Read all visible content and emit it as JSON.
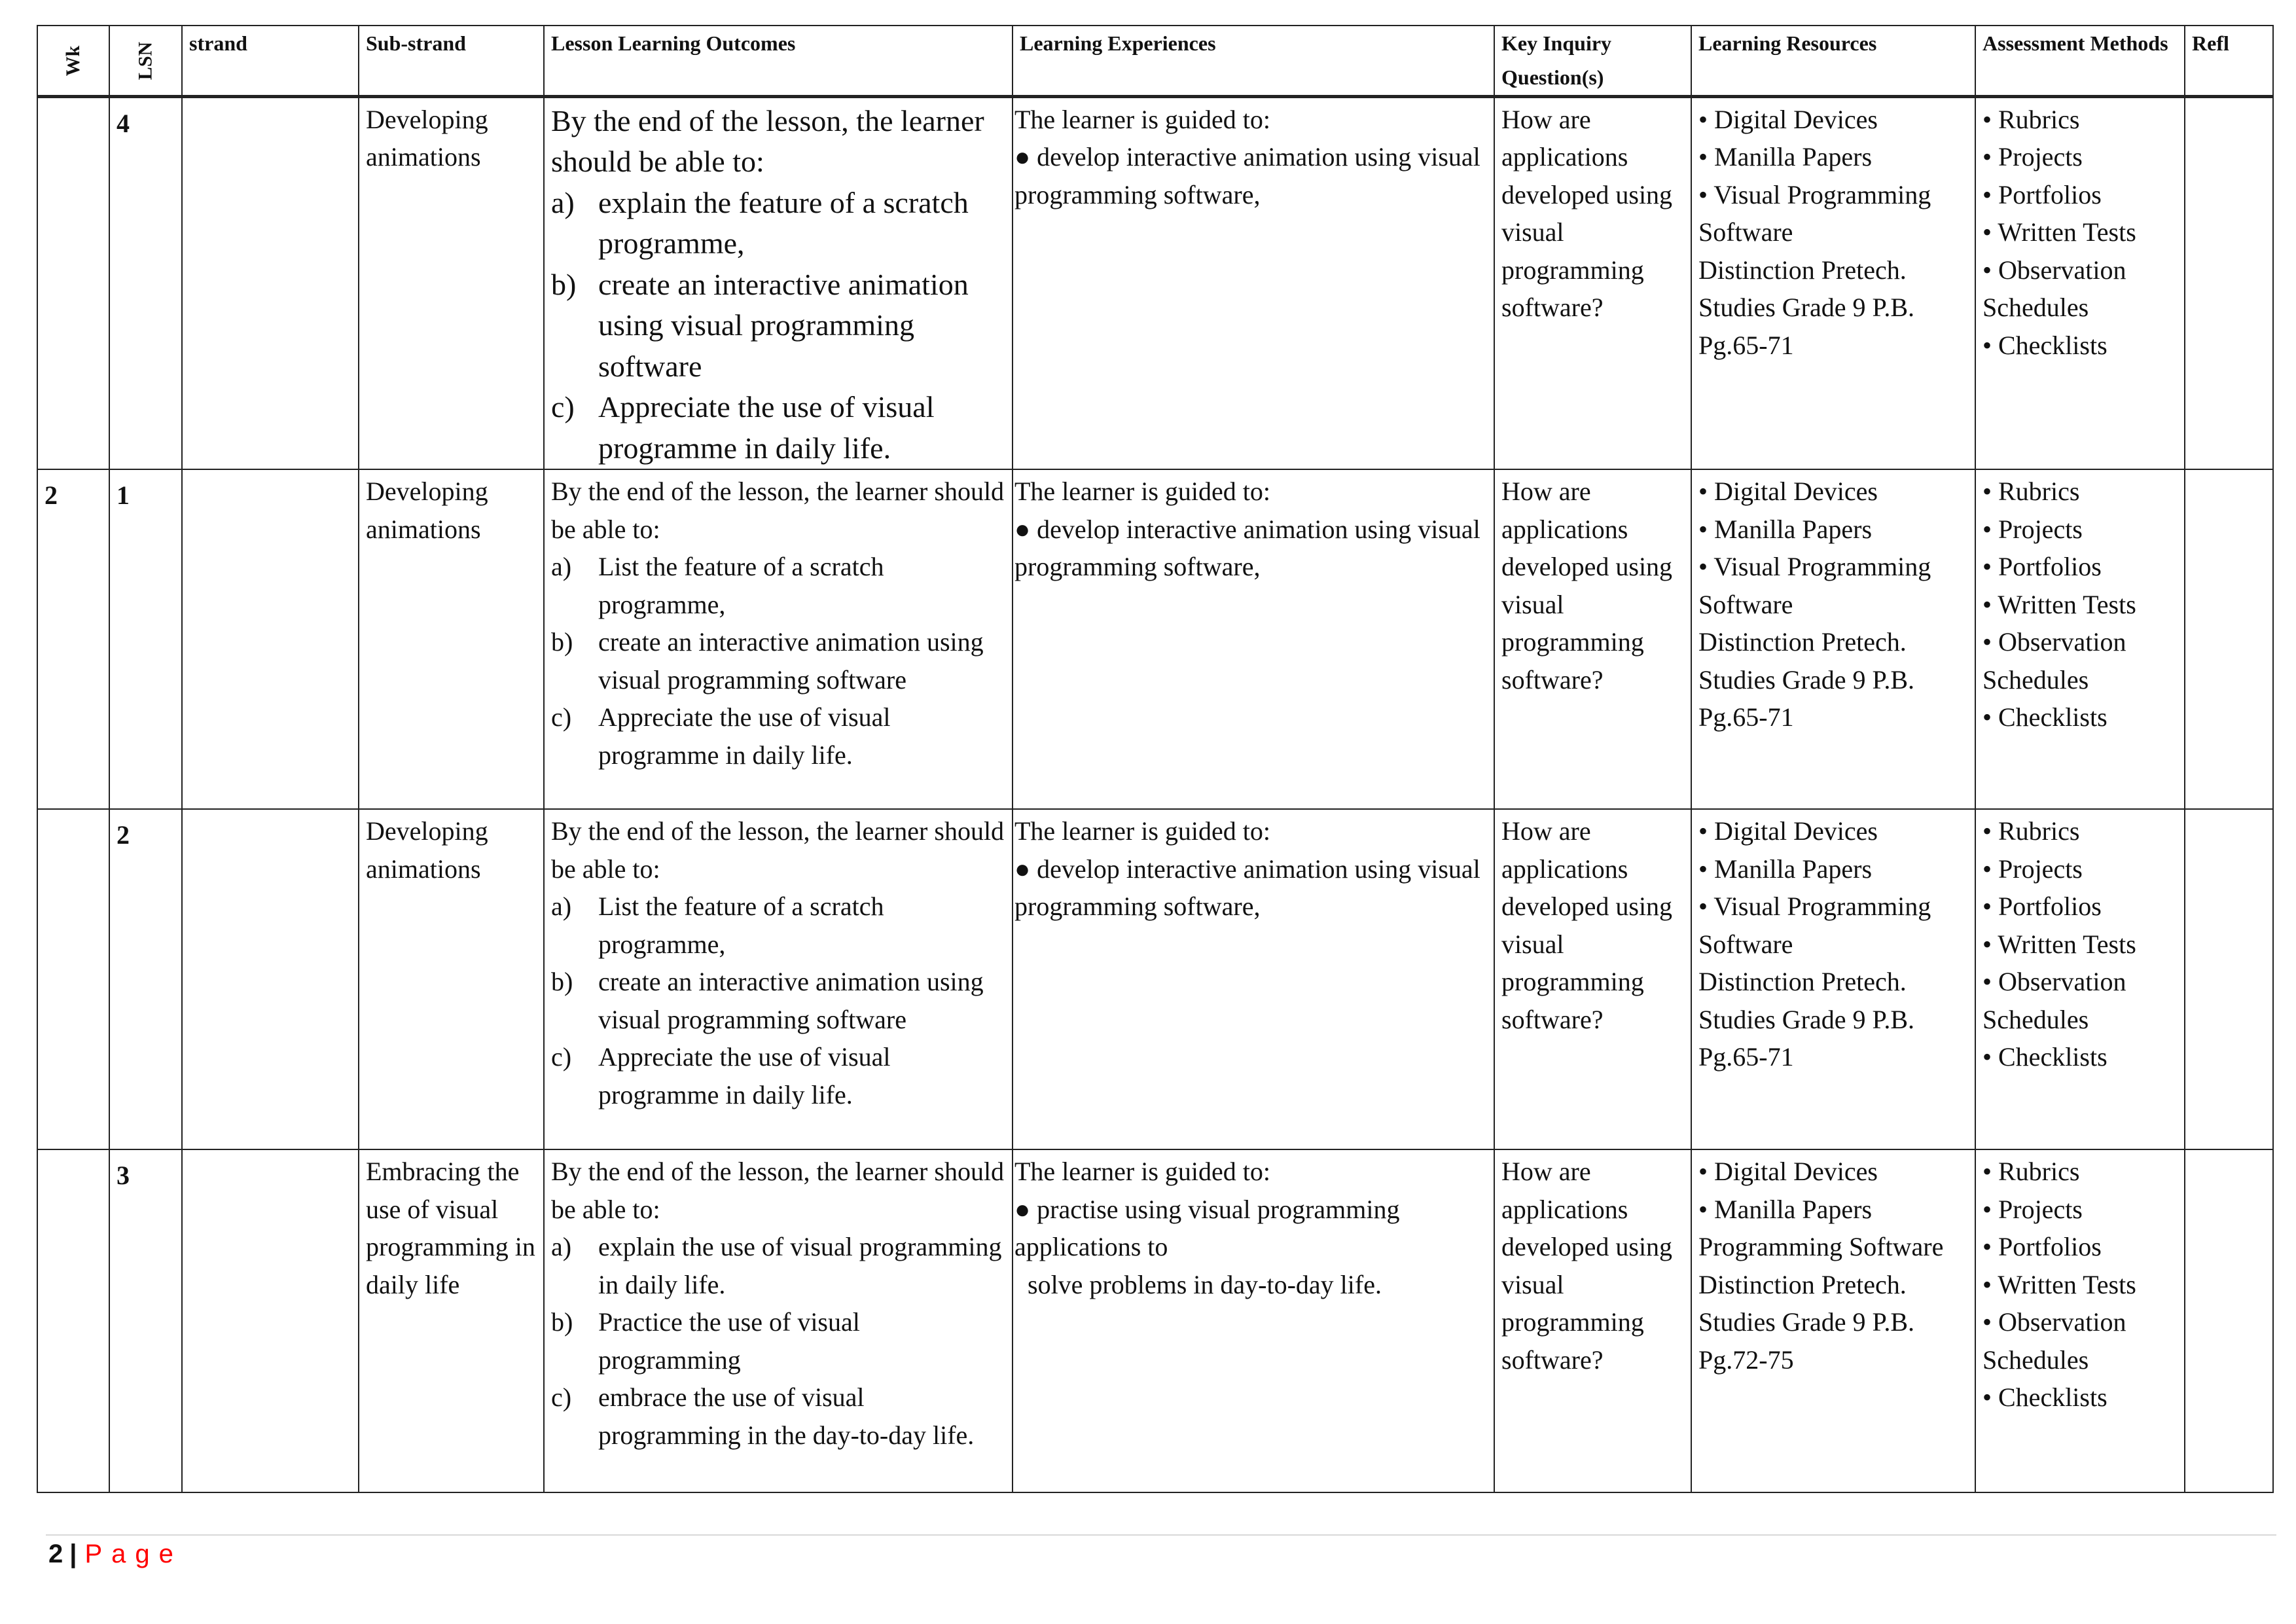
{
  "header": {
    "wk": "Wk",
    "lsn": "LSN",
    "strand": "strand",
    "substrand": "Sub-strand",
    "outcomes": "Lesson Learning Outcomes",
    "experiences": "Learning Experiences",
    "inquiry": "Key Inquiry Question(s)",
    "resources": "Learning Resources",
    "assessment": "Assessment Methods",
    "reflection": "Refl"
  },
  "rows": [
    {
      "wk": "",
      "lsn": "4",
      "strand": "",
      "substrand": "Developing animations",
      "outcomes_intro": "By the end of the lesson, the learner should be able to:",
      "outcomes": [
        {
          "letter": "a)",
          "text": "explain the feature of a scratch programme,"
        },
        {
          "letter": "b)",
          "text": "create an interactive animation using visual programming software"
        },
        {
          "letter": "c)",
          "text": "Appreciate the use of visual programme in daily life."
        }
      ],
      "experiences": [
        "The learner is guided to:",
        "● develop interactive animation using visual programming software,"
      ],
      "inquiry": "How are applications developed using visual programming software?",
      "resources": [
        "• Digital Devices",
        "• Manilla Papers",
        "• Visual Programming Software",
        "Distinction Pretech. Studies Grade 9 P.B. Pg.65-71"
      ],
      "assessment": [
        "• Rubrics",
        "• Projects",
        "• Portfolios",
        "• Written Tests",
        "• Observation Schedules",
        "• Checklists"
      ],
      "reflection": ""
    },
    {
      "wk": "2",
      "lsn": "1",
      "strand": "",
      "substrand": "Developing animations",
      "outcomes_intro": "By the end of the lesson, the learner should be able to:",
      "outcomes": [
        {
          "letter": "a)",
          "text": "List the feature of a scratch programme,"
        },
        {
          "letter": "b)",
          "text": "create an interactive animation using visual programming software"
        },
        {
          "letter": "c)",
          "text": "Appreciate the use of visual programme in daily life."
        }
      ],
      "experiences": [
        "The learner is guided to:",
        "● develop interactive animation using visual programming software,"
      ],
      "inquiry": "How are applications developed using visual programming software?",
      "resources": [
        "• Digital Devices",
        "• Manilla Papers",
        "• Visual Programming Software",
        "Distinction Pretech. Studies Grade 9 P.B. Pg.65-71"
      ],
      "assessment": [
        "• Rubrics",
        "• Projects",
        "• Portfolios",
        "• Written Tests",
        "• Observation Schedules",
        "• Checklists"
      ],
      "reflection": ""
    },
    {
      "wk": "",
      "lsn": "2",
      "strand": "",
      "substrand": "Developing animations",
      "outcomes_intro": "By the end of the lesson, the learner should be able to:",
      "outcomes": [
        {
          "letter": "a)",
          "text": "List the feature of a scratch programme,"
        },
        {
          "letter": "b)",
          "text": "create an interactive animation using visual programming software"
        },
        {
          "letter": "c)",
          "text": "Appreciate the use of visual programme in daily life."
        }
      ],
      "experiences": [
        "The learner is guided to:",
        "● develop interactive animation using visual programming software,"
      ],
      "inquiry": "How are applications developed using visual programming software?",
      "resources": [
        "• Digital Devices",
        "• Manilla Papers",
        "• Visual Programming Software",
        "Distinction Pretech. Studies Grade 9 P.B. Pg.65-71"
      ],
      "assessment": [
        "• Rubrics",
        "• Projects",
        "• Portfolios",
        "• Written Tests",
        "• Observation Schedules",
        "• Checklists"
      ],
      "reflection": ""
    },
    {
      "wk": "",
      "lsn": "3",
      "strand": "",
      "substrand": "Embracing the use of visual programming in daily life",
      "outcomes_intro": "By the end of the lesson, the learner should be able to:",
      "outcomes": [
        {
          "letter": "a)",
          "text": "explain the use of visual programming in daily life."
        },
        {
          "letter": "b)",
          "text": "Practice the use of visual programming"
        },
        {
          "letter": "c)",
          "text": "embrace the use of visual programming in the day-to-day life."
        }
      ],
      "experiences": [
        "The learner is guided to:",
        "● practise using visual programming applications to",
        "  solve problems in day-to-day life."
      ],
      "inquiry": "How are applications developed using visual programming software?",
      "resources": [
        "• Digital Devices",
        "• Manilla Papers",
        "Programming Software",
        "Distinction Pretech. Studies Grade 9 P.B. Pg.72-75"
      ],
      "assessment": [
        "• Rubrics",
        "• Projects",
        "• Portfolios",
        "• Written Tests",
        "• Observation Schedules",
        "• Checklists"
      ],
      "reflection": ""
    }
  ],
  "footer": {
    "page_number": "2",
    "separator": "|",
    "page_label": "Page"
  },
  "colors": {
    "page_label": "#ff0000",
    "border": "#222222"
  }
}
